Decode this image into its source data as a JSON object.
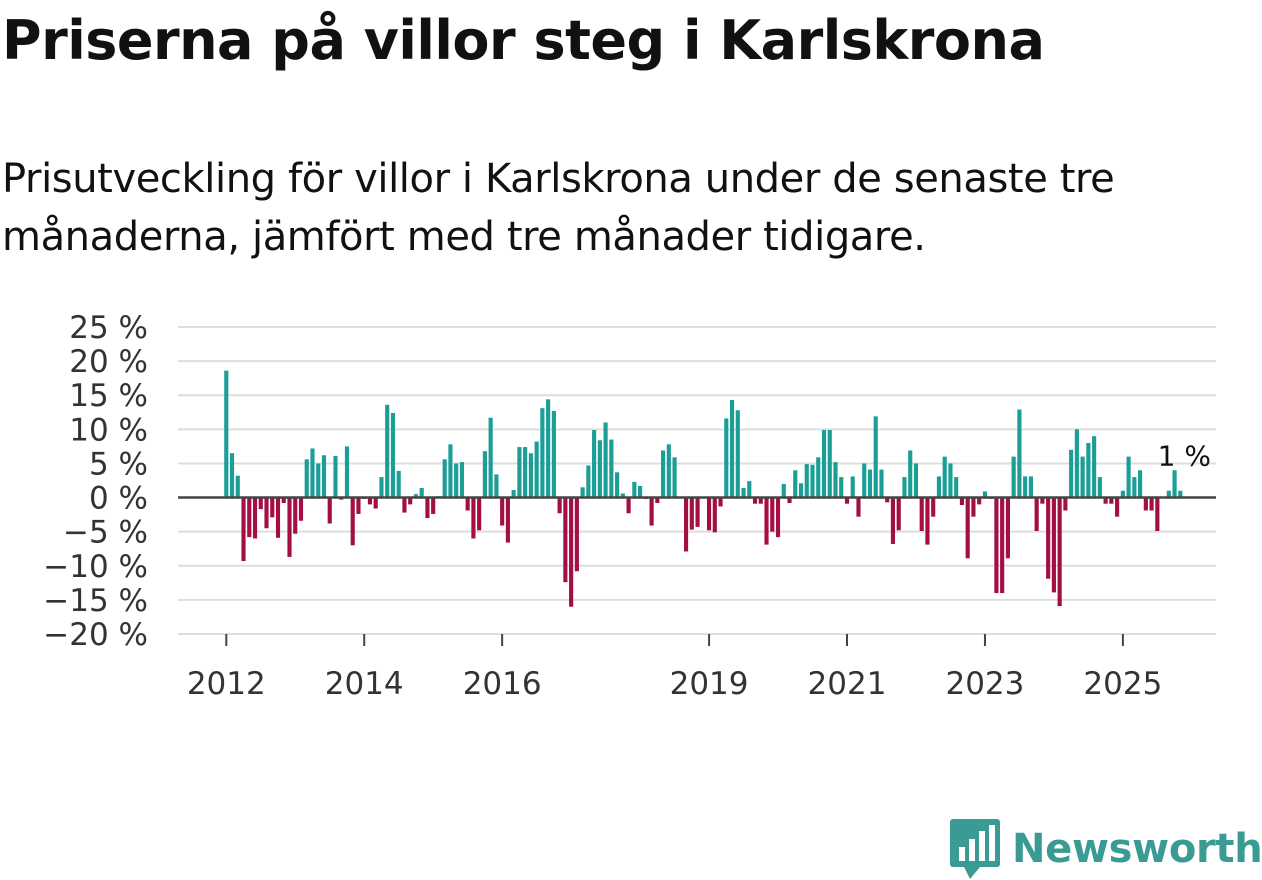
{
  "title": "Priserna på villor steg i Karlskrona",
  "subtitle": "Prisutveckling för villor i Karlskrona under de senaste tre månaderna, jämfört med tre månader tidigare.",
  "brand": {
    "name": "Newsworthy",
    "icon": "bar-chart-speech-bubble-icon",
    "color": "#3a9b94"
  },
  "chart_data": {
    "type": "bar",
    "title": "Priserna på villor steg i Karlskrona",
    "xlabel": "",
    "ylabel": "",
    "ylim": [
      -20,
      25
    ],
    "y_ticks": [
      25,
      20,
      15,
      10,
      5,
      0,
      -5,
      -10,
      -15,
      -20
    ],
    "y_tick_labels": [
      "25 %",
      "20 %",
      "15 %",
      "10 %",
      "5 %",
      "0 %",
      "−5 %",
      "−10 %",
      "−15 %",
      "−20 %"
    ],
    "x_ticks": [
      "2012",
      "2014",
      "2016",
      "2019",
      "2021",
      "2023",
      "2025"
    ],
    "x_tick_years": [
      2012,
      2014,
      2016,
      2019,
      2021,
      2023,
      2025
    ],
    "x_domain_years": [
      2011.3,
      2026.35
    ],
    "series_start_year": 2012,
    "step_years": 0.08333,
    "positive_color": "#1a9e96",
    "negative_color": "#a50d45",
    "annotation": {
      "text": "1 %",
      "value": 1
    },
    "values": [
      18.6,
      6.5,
      3.2,
      -9.3,
      -5.8,
      -6.0,
      -1.7,
      -4.5,
      -2.9,
      -5.9,
      -0.8,
      -8.7,
      -5.3,
      -3.4,
      5.6,
      7.2,
      5.0,
      6.2,
      -3.8,
      6.1,
      -0.3,
      7.5,
      -7.0,
      -2.4,
      -0.2,
      -1.0,
      -1.6,
      3.0,
      13.6,
      12.4,
      3.9,
      -2.2,
      -1.0,
      0.5,
      1.4,
      -3.0,
      -2.4,
      0.2,
      5.6,
      7.8,
      5.0,
      5.2,
      -1.9,
      -6.0,
      -4.8,
      6.8,
      11.7,
      3.4,
      -4.1,
      -6.6,
      1.1,
      7.4,
      7.4,
      6.5,
      8.2,
      13.1,
      14.4,
      12.7,
      -2.3,
      -12.4,
      -16.0,
      -10.8,
      1.5,
      4.7,
      9.9,
      8.4,
      11.0,
      8.5,
      3.7,
      0.6,
      -2.3,
      2.3,
      1.7,
      -0.2,
      -4.1,
      -0.8,
      6.9,
      7.8,
      5.9,
      -0.1,
      -7.9,
      -4.7,
      -4.3,
      -0.1,
      -4.8,
      -5.1,
      -1.3,
      11.6,
      14.3,
      12.8,
      1.4,
      2.4,
      -0.9,
      -0.9,
      -6.9,
      -5.0,
      -5.8,
      2.0,
      -0.8,
      4.0,
      2.1,
      4.9,
      4.8,
      5.9,
      9.9,
      9.9,
      5.2,
      3.0,
      -0.9,
      3.1,
      -2.8,
      5.0,
      4.1,
      11.9,
      4.1,
      -0.7,
      -6.8,
      -4.8,
      3.0,
      6.9,
      5.0,
      -4.9,
      -6.9,
      -2.8,
      3.1,
      6.0,
      5.0,
      3.0,
      -1.1,
      -8.9,
      -2.8,
      -1.0,
      0.9,
      -0.2,
      -14.0,
      -14.0,
      -8.9,
      6.0,
      12.9,
      3.1,
      3.1,
      -4.9,
      -0.9,
      -11.9,
      -13.9,
      -15.9,
      -1.9,
      7.0,
      10.0,
      6.0,
      8.0,
      9.0,
      3.0,
      -0.9,
      -0.9,
      -2.8,
      1.0,
      6.0,
      3.0,
      4.0,
      -1.9,
      -1.9,
      -4.9,
      0.1,
      1.0,
      4.0,
      1.0
    ]
  }
}
